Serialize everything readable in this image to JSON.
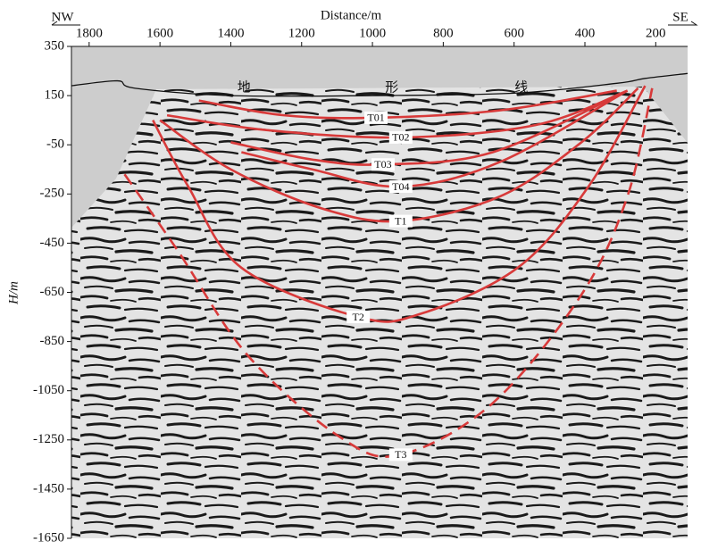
{
  "chart_data": {
    "type": "section",
    "title": "Distance/m",
    "x_label_left": "NW",
    "x_label_right": "SE",
    "y_label": "H/m",
    "xlim": [
      1850,
      110
    ],
    "xticks": [
      1800,
      1600,
      1400,
      1200,
      1000,
      800,
      600,
      400,
      200
    ],
    "ylim": [
      350,
      -1650
    ],
    "yticks": [
      350,
      150,
      -50,
      -250,
      -450,
      -650,
      -850,
      -1050,
      -1250,
      -1450,
      -1650
    ],
    "annotations": [
      "地",
      "形",
      "线"
    ],
    "surface": {
      "color": "#111111",
      "x": [
        1850,
        1720,
        1670,
        1400,
        1000,
        600,
        310,
        230,
        110
      ],
      "values": [
        190,
        210,
        180,
        150,
        150,
        160,
        200,
        220,
        240
      ]
    },
    "series": [
      {
        "name": "T01",
        "color": "#d83a3a",
        "style": "solid",
        "x": [
          1490,
          1250,
          990,
          640,
          310
        ],
        "values": [
          130,
          70,
          60,
          90,
          170
        ]
      },
      {
        "name": "T02",
        "color": "#d83a3a",
        "style": "solid",
        "x": [
          1580,
          1300,
          920,
          540,
          280
        ],
        "values": [
          70,
          10,
          -20,
          30,
          170
        ]
      },
      {
        "name": "T03",
        "color": "#d83a3a",
        "style": "solid",
        "x": [
          1400,
          1170,
          970,
          660,
          280
        ],
        "values": [
          -40,
          -110,
          -130,
          -80,
          170
        ]
      },
      {
        "name": "T04",
        "color": "#d83a3a",
        "style": "solid",
        "x": [
          1370,
          1170,
          920,
          640,
          280
        ],
        "values": [
          -80,
          -150,
          -220,
          -120,
          170
        ]
      },
      {
        "name": "T1",
        "color": "#d83a3a",
        "style": "solid",
        "x": [
          1600,
          1400,
          1140,
          920,
          640,
          410,
          250
        ],
        "values": [
          50,
          -150,
          -310,
          -360,
          -260,
          -40,
          180
        ]
      },
      {
        "name": "T2",
        "color": "#d83a3a",
        "style": "solid",
        "x": [
          1620,
          1520,
          1370,
          1040,
          870,
          590,
          390,
          230
        ],
        "values": [
          50,
          -220,
          -550,
          -750,
          -740,
          -550,
          -220,
          190
        ]
      },
      {
        "name": "T3",
        "color": "#d83a3a",
        "style": "dashed",
        "x": [
          1700,
          1550,
          1350,
          1090,
          920,
          660,
          410,
          280,
          210
        ],
        "values": [
          -170,
          -480,
          -910,
          -1240,
          -1310,
          -1100,
          -660,
          -260,
          180
        ]
      }
    ]
  }
}
